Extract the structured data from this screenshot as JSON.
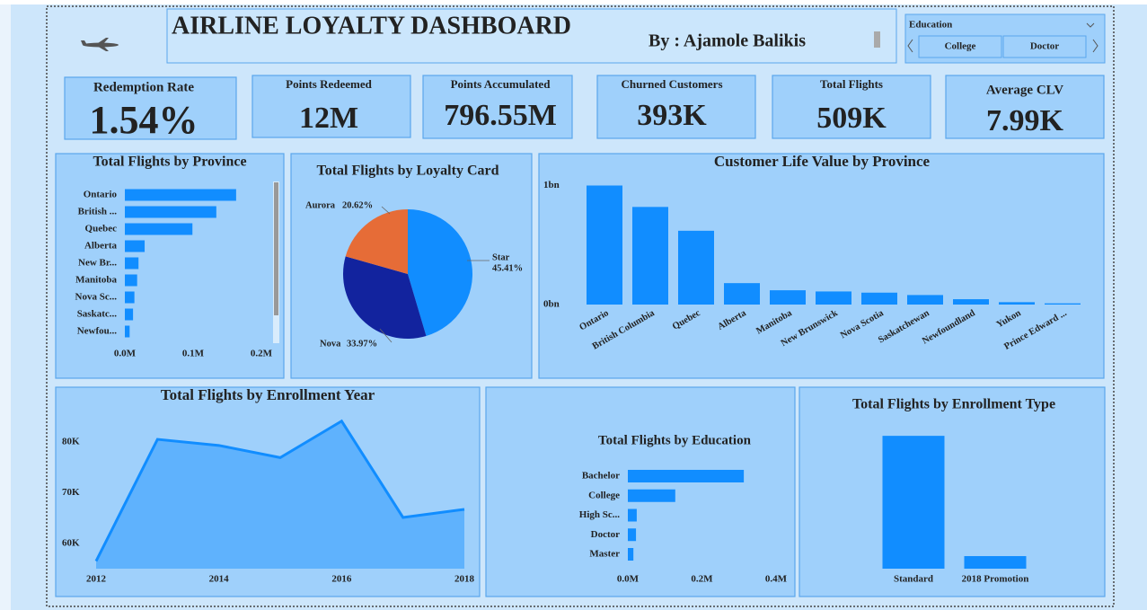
{
  "header": {
    "title": "AIRLINE LOYALTY DASHBOARD",
    "author": "By : Ajamole Balikis"
  },
  "slicer": {
    "title": "Education",
    "items": [
      "College",
      "Doctor"
    ]
  },
  "kpis": [
    {
      "label": "Redemption Rate",
      "value": "1.54%"
    },
    {
      "label": "Points Redeemed",
      "value": "12M"
    },
    {
      "label": "Points Accumulated",
      "value": "796.55M"
    },
    {
      "label": "Churned Customers",
      "value": "393K"
    },
    {
      "label": "Total Flights",
      "value": "509K"
    },
    {
      "label": "Average CLV",
      "value": "7.99K"
    }
  ],
  "chart_data": [
    {
      "type": "hbar",
      "title": "Total Flights by Province",
      "categories": [
        "Ontario",
        "British ...",
        "Quebec",
        "Alberta",
        "New Br...",
        "Manitoba",
        "Nova Sc...",
        "Saskatc...",
        "Newfou..."
      ],
      "values": [
        163000,
        134000,
        99000,
        29000,
        20000,
        18000,
        14000,
        12000,
        7000
      ],
      "color": "#118dff",
      "xlim": [
        0,
        200000
      ],
      "xticks": [
        {
          "value": 0,
          "label": "0.0M"
        },
        {
          "value": 100000,
          "label": "0.1M"
        },
        {
          "value": 200000,
          "label": "0.2M"
        }
      ]
    },
    {
      "type": "pie",
      "title": "Total Flights by Loyalty Card",
      "categories": [
        "Star",
        "Nova",
        "Aurora"
      ],
      "values": [
        45.41,
        33.97,
        20.62
      ],
      "value_labels": [
        "45.41%",
        "33.97%",
        "20.62%"
      ],
      "colors": [
        "#118dff",
        "#12239e",
        "#e66c37"
      ]
    },
    {
      "type": "column",
      "title": "Customer Life Value by Province",
      "categories": [
        "Ontario",
        "British Columbia",
        "Quebec",
        "Alberta",
        "Manitoba",
        "New Brunswick",
        "Nova Scotia",
        "Saskatchewan",
        "Newfoundland",
        "Yukon",
        "Prince Edward ..."
      ],
      "values": [
        1000000000,
        820000000,
        620000000,
        180000000,
        120000000,
        110000000,
        100000000,
        80000000,
        45000000,
        20000000,
        10000000
      ],
      "color": "#118dff",
      "ylim": [
        0,
        1200000000
      ],
      "yticks": [
        {
          "value": 0,
          "label": "0bn"
        },
        {
          "value": 1000000000,
          "label": "1bn"
        }
      ]
    },
    {
      "type": "area",
      "title": "Total Flights by Enrollment Year",
      "x": [
        2012,
        2013,
        2014,
        2015,
        2016,
        2017,
        2018
      ],
      "values": [
        56500,
        80500,
        79300,
        76900,
        84100,
        65100,
        66700
      ],
      "color": "#118dff",
      "xlim": [
        2012,
        2018
      ],
      "xticks": [
        2012,
        2014,
        2016,
        2018
      ],
      "ylim": [
        55000,
        86000
      ],
      "yticks": [
        {
          "value": 60000,
          "label": "60K"
        },
        {
          "value": 70000,
          "label": "70K"
        },
        {
          "value": 80000,
          "label": "80K"
        }
      ]
    },
    {
      "type": "hbar",
      "title": "Total Flights by Education",
      "categories": [
        "Bachelor",
        "College",
        "High Sc...",
        "Doctor",
        "Master"
      ],
      "values": [
        313000,
        128000,
        24000,
        22000,
        15000
      ],
      "color": "#118dff",
      "xlim": [
        0,
        400000
      ],
      "xticks": [
        {
          "value": 0,
          "label": "0.0M"
        },
        {
          "value": 200000,
          "label": "0.2M"
        },
        {
          "value": 400000,
          "label": "0.4M"
        }
      ]
    },
    {
      "type": "column",
      "title": "Total Flights by Enrollment Type",
      "categories": [
        "Standard",
        "2018 Promotion"
      ],
      "values": [
        465000,
        44000
      ],
      "color": "#118dff",
      "ylim": [
        0,
        500000
      ]
    }
  ]
}
